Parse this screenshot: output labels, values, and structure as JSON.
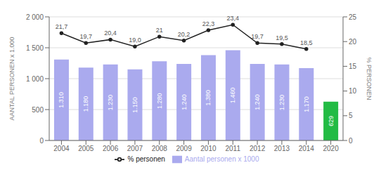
{
  "chart_data": {
    "type": "bar",
    "categories": [
      "2004",
      "2005",
      "2006",
      "2007",
      "2008",
      "2009",
      "2010",
      "2011",
      "2012",
      "2013",
      "2014",
      "2020"
    ],
    "series": [
      {
        "name": "Aantal personen x 1000",
        "type": "bar",
        "color": "#aaaaee",
        "colors": [
          "#aaaaee",
          "#aaaaee",
          "#aaaaee",
          "#aaaaee",
          "#aaaaee",
          "#aaaaee",
          "#aaaaee",
          "#aaaaee",
          "#aaaaee",
          "#aaaaee",
          "#aaaaee",
          "#22bb44"
        ],
        "values": [
          1310,
          1180,
          1230,
          1150,
          1280,
          1240,
          1380,
          1460,
          1240,
          1230,
          1170,
          629
        ],
        "value_labels": [
          "1.310",
          "1.180",
          "1.230",
          "1.150",
          "1.280",
          "1.240",
          "1.380",
          "1.460",
          "1.240",
          "1.230",
          "1.170",
          "629"
        ]
      },
      {
        "name": "% personen",
        "type": "line",
        "axis": "y2",
        "color": "#222222",
        "marker": "circle",
        "values": [
          21.7,
          19.7,
          20.4,
          19.0,
          21.0,
          20.2,
          22.3,
          23.4,
          19.7,
          19.5,
          18.5,
          null
        ],
        "value_labels": [
          "21,7",
          "19,7",
          "20,4",
          "19,0",
          "21",
          "20,2",
          "22,3",
          "23,4",
          "19,7",
          "19,5",
          "18,5",
          null
        ]
      }
    ],
    "y_label": "AANTAL PERSONEN x 1.000",
    "y2_label": "% PERSONEN",
    "ylim": [
      0,
      2000
    ],
    "yticks": [
      0,
      500,
      {
        "value": 1000,
        "label": "1 000"
      },
      {
        "value": 1500,
        "label": "1 500"
      },
      {
        "value": 2000,
        "label": "2 000"
      }
    ],
    "y2lim": [
      0,
      25
    ],
    "y2ticks": [
      0,
      5,
      10,
      15,
      20,
      25
    ],
    "grid": true,
    "legend": "bottom",
    "data_labels": true
  }
}
